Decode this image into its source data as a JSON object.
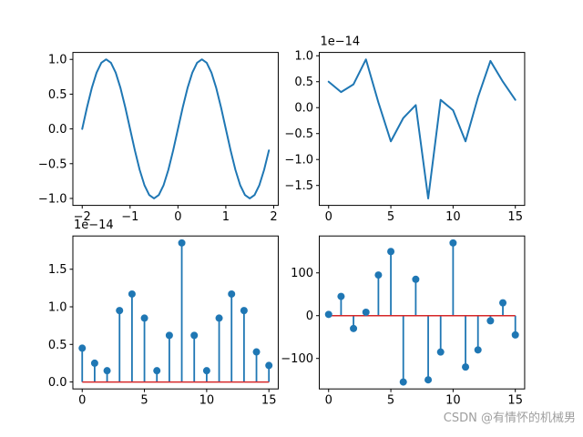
{
  "figure": {
    "background": "#ffffff",
    "line_color": "#1f77b4",
    "baseline_color": "#d62728",
    "spine_color": "#000000",
    "watermark": "CSDN @有情怀的机械男"
  },
  "chart_data": [
    {
      "id": "subplot-top-left-sine-line",
      "type": "line",
      "title": "",
      "xlabel": "",
      "ylabel": "",
      "x": [
        -2.0,
        -1.9,
        -1.8,
        -1.7,
        -1.6,
        -1.5,
        -1.4,
        -1.3,
        -1.2,
        -1.1,
        -1.0,
        -0.9,
        -0.8,
        -0.7,
        -0.6,
        -0.5,
        -0.4,
        -0.3,
        -0.2,
        -0.1,
        0.0,
        0.1,
        0.2,
        0.3,
        0.4,
        0.5,
        0.6,
        0.7,
        0.8,
        0.9,
        1.0,
        1.1,
        1.2,
        1.3,
        1.4,
        1.5,
        1.6,
        1.7,
        1.8,
        1.9
      ],
      "y": [
        0,
        0.309,
        0.588,
        0.809,
        0.951,
        1,
        0.951,
        0.809,
        0.588,
        0.309,
        0,
        -0.309,
        -0.588,
        -0.809,
        -0.951,
        -1,
        -0.951,
        -0.809,
        -0.588,
        -0.309,
        0,
        0.309,
        0.588,
        0.809,
        0.951,
        1,
        0.951,
        0.809,
        0.588,
        0.309,
        0,
        -0.309,
        -0.588,
        -0.809,
        -0.951,
        -1,
        -0.951,
        -0.809,
        -0.588,
        -0.309
      ],
      "xlim": [
        -2.195,
        2.095
      ],
      "ylim": [
        -1.1,
        1.1
      ],
      "xticks": {
        "values": [
          -2,
          -1,
          0,
          1,
          2
        ],
        "labels": [
          "−2",
          "−1",
          "0",
          "1",
          "2"
        ]
      },
      "yticks": {
        "values": [
          -1,
          -0.5,
          0,
          0.5,
          1
        ],
        "labels": [
          "−1.0",
          "−0.5",
          "0.0",
          "0.5",
          "1.0"
        ]
      },
      "offset_text": ""
    },
    {
      "id": "subplot-top-right-noise-line",
      "type": "line",
      "title": "",
      "xlabel": "",
      "ylabel": "",
      "x": [
        0,
        1,
        2,
        3,
        4,
        5,
        6,
        7,
        8,
        9,
        10,
        11,
        12,
        13,
        14,
        15
      ],
      "y": [
        0.5,
        0.3,
        0.45,
        0.93,
        0.1,
        -0.65,
        -0.2,
        0.05,
        -1.75,
        0.15,
        -0.05,
        -0.65,
        0.2,
        0.9,
        0.5,
        0.15
      ],
      "xlim": [
        -0.75,
        15.75
      ],
      "ylim": [
        -1.884,
        1.064
      ],
      "xticks": {
        "values": [
          0,
          5,
          10,
          15
        ],
        "labels": [
          "0",
          "5",
          "10",
          "15"
        ]
      },
      "yticks": {
        "values": [
          -1.5,
          -1.0,
          -0.5,
          0.0,
          0.5,
          1.0
        ],
        "labels": [
          "−1.5",
          "−1.0",
          "−0.5",
          "0.0",
          "0.5",
          "1.0"
        ]
      },
      "offset_text": "1e−14"
    },
    {
      "id": "subplot-bottom-left-stem",
      "type": "stem",
      "title": "",
      "xlabel": "",
      "ylabel": "",
      "x": [
        0,
        1,
        2,
        3,
        4,
        5,
        6,
        7,
        8,
        9,
        10,
        11,
        12,
        13,
        14,
        15
      ],
      "y": [
        0.45,
        0.25,
        0.15,
        0.95,
        1.17,
        0.85,
        0.15,
        0.62,
        1.85,
        0.62,
        0.15,
        0.85,
        1.17,
        0.95,
        0.4,
        0.22
      ],
      "xlim": [
        -0.75,
        15.75
      ],
      "ylim": [
        -0.0925,
        1.9425
      ],
      "xticks": {
        "values": [
          0,
          5,
          10,
          15
        ],
        "labels": [
          "0",
          "5",
          "10",
          "15"
        ]
      },
      "yticks": {
        "values": [
          0.0,
          0.5,
          1.0,
          1.5
        ],
        "labels": [
          "0.0",
          "0.5",
          "1.0",
          "1.5"
        ]
      },
      "offset_text": "1e−14",
      "baseline": 0
    },
    {
      "id": "subplot-bottom-right-stem",
      "type": "stem",
      "title": "",
      "xlabel": "",
      "ylabel": "",
      "x": [
        0,
        1,
        2,
        3,
        4,
        5,
        6,
        7,
        8,
        9,
        10,
        11,
        12,
        13,
        14,
        15
      ],
      "y": [
        3,
        45,
        -30,
        8,
        95,
        150,
        -155,
        85,
        -150,
        -85,
        170,
        -120,
        -80,
        -12,
        30,
        -45
      ],
      "xlim": [
        -0.75,
        15.75
      ],
      "ylim": [
        -171.25,
        186.25
      ],
      "xticks": {
        "values": [
          0,
          5,
          10,
          15
        ],
        "labels": [
          "0",
          "5",
          "10",
          "15"
        ]
      },
      "yticks": {
        "values": [
          -100,
          0,
          100
        ],
        "labels": [
          "−100",
          "0",
          "100"
        ]
      },
      "offset_text": "",
      "baseline": 0
    }
  ]
}
